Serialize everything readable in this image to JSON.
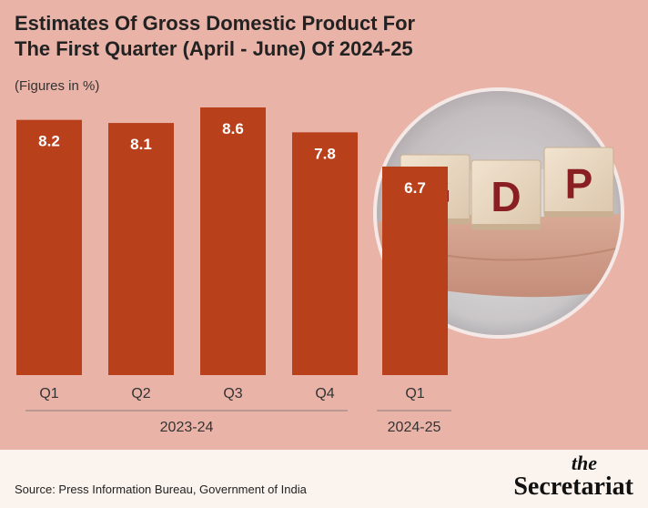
{
  "title_line1": "Estimates Of Gross Domestic Product For",
  "title_line2": "The First Quarter (April - June) Of 2024-25",
  "subtitle": "(Figures in %)",
  "source": "Source: Press Information Bureau, Government of India",
  "logo": {
    "top": "the",
    "name": "Secretariat"
  },
  "photo": {
    "blocks": [
      {
        "letter": "G"
      },
      {
        "letter": "D"
      },
      {
        "letter": "P"
      }
    ]
  },
  "colors": {
    "background": "#e9b3a8",
    "bar": "#b8401b",
    "footer": "#fbf3ee",
    "letters": "#8a1f23"
  },
  "chart_data": {
    "type": "bar",
    "title": "Estimates Of Gross Domestic Product For The First Quarter (April - June) Of 2024-25",
    "ylabel": "",
    "xlabel": "",
    "categories": [
      "Q1",
      "Q2",
      "Q3",
      "Q4",
      "Q1"
    ],
    "groups": [
      {
        "label": "2023-24",
        "categories": [
          "Q1",
          "Q2",
          "Q3",
          "Q4"
        ]
      },
      {
        "label": "2024-25",
        "categories": [
          "Q1"
        ]
      }
    ],
    "values": [
      8.2,
      8.1,
      8.6,
      7.8,
      6.7
    ],
    "value_labels": [
      "8.2",
      "8.1",
      "8.6",
      "7.8",
      "6.7"
    ],
    "ylim": [
      0,
      8.6
    ],
    "grid": false,
    "legend": "none"
  }
}
